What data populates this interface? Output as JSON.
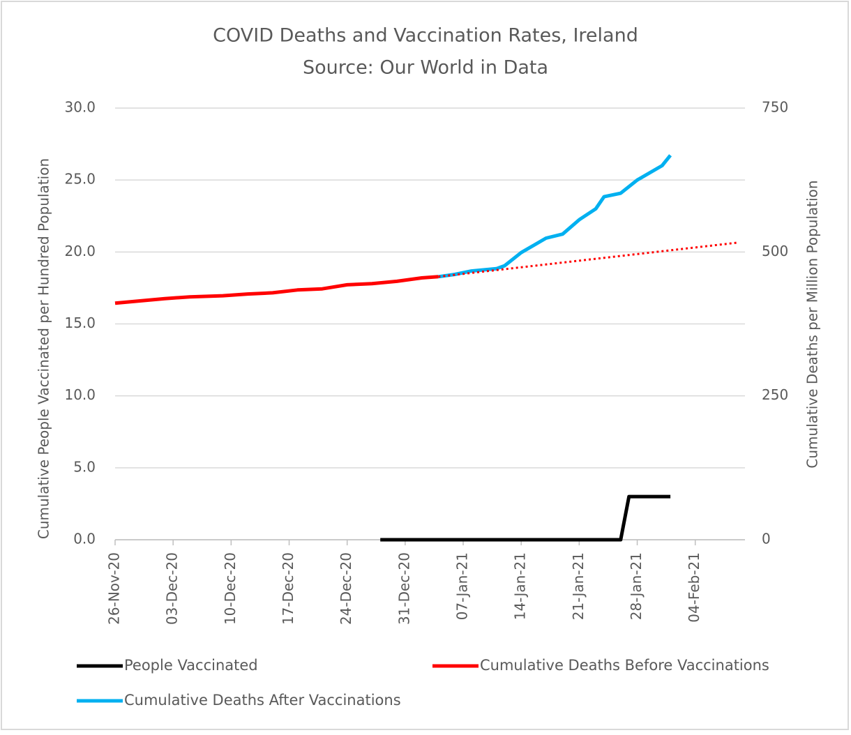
{
  "chart_data": {
    "type": "line",
    "title": "COVID Deaths and Vaccination Rates, Ireland",
    "subtitle": "Source: Our World in Data",
    "ylabel": "Cumulative People Vaccinated per Hundred  Population",
    "y2label": "Cumulative Deaths per Million Population",
    "xlim": [
      "2020-11-26",
      "2021-02-10"
    ],
    "xticks": [
      {
        "value": "2020-11-26",
        "label": "26-Nov-20"
      },
      {
        "value": "2020-12-03",
        "label": "03-Dec-20"
      },
      {
        "value": "2020-12-10",
        "label": "10-Dec-20"
      },
      {
        "value": "2020-12-17",
        "label": "17-Dec-20"
      },
      {
        "value": "2020-12-24",
        "label": "24-Dec-20"
      },
      {
        "value": "2020-12-31",
        "label": "31-Dec-20"
      },
      {
        "value": "2021-01-07",
        "label": "07-Jan-21"
      },
      {
        "value": "2021-01-14",
        "label": "14-Jan-21"
      },
      {
        "value": "2021-01-21",
        "label": "21-Jan-21"
      },
      {
        "value": "2021-01-28",
        "label": "28-Jan-21"
      },
      {
        "value": "2021-02-04",
        "label": "04-Feb-21"
      }
    ],
    "ylim": [
      0,
      30
    ],
    "yticks": [
      {
        "value": 0,
        "label": "0.0"
      },
      {
        "value": 5,
        "label": "5.0"
      },
      {
        "value": 10,
        "label": "10.0"
      },
      {
        "value": 15,
        "label": "15.0"
      },
      {
        "value": 20,
        "label": "20.0"
      },
      {
        "value": 25,
        "label": "25.0"
      },
      {
        "value": 30,
        "label": "30.0"
      }
    ],
    "y2lim": [
      0,
      750
    ],
    "y2ticks": [
      0,
      250,
      500,
      750
    ],
    "grid": true,
    "legend": "bottom",
    "series": [
      {
        "name": "People Vaccinated",
        "color": "#000000",
        "x": [
          "2020-12-28",
          "2021-01-05",
          "2021-01-15",
          "2021-01-26",
          "2021-01-27",
          "2021-02-01"
        ],
        "values": [
          0,
          0,
          0,
          0,
          3.0,
          3.0
        ]
      },
      {
        "name": "Cumulative Deaths Before Vaccinations",
        "color": "#ff0000",
        "axis": "y2",
        "x": [
          "2020-11-26",
          "2020-11-29",
          "2020-12-02",
          "2020-12-05",
          "2020-12-09",
          "2020-12-12",
          "2020-12-15",
          "2020-12-18",
          "2020-12-21",
          "2020-12-24",
          "2020-12-27",
          "2020-12-30",
          "2021-01-02",
          "2021-01-04"
        ],
        "values": [
          411,
          415,
          419,
          422,
          424,
          427,
          429,
          434,
          436,
          443,
          445,
          449,
          455,
          457
        ]
      },
      {
        "name": "Cumulative Deaths After Vaccinations",
        "color": "#00b0f0",
        "axis": "y2",
        "x": [
          "2021-01-04",
          "2021-01-06",
          "2021-01-08",
          "2021-01-11",
          "2021-01-12",
          "2021-01-14",
          "2021-01-17",
          "2021-01-19",
          "2021-01-21",
          "2021-01-23",
          "2021-01-24",
          "2021-01-26",
          "2021-01-28",
          "2021-01-31",
          "2021-02-01"
        ],
        "values": [
          457,
          461,
          467,
          471,
          476,
          499,
          524,
          531,
          556,
          575,
          596,
          602,
          625,
          650,
          668
        ]
      },
      {
        "color": "#ff0000",
        "axis": "y2",
        "dotted": true,
        "x": [
          "2021-01-04",
          "2021-02-09"
        ],
        "values": [
          457,
          516
        ]
      }
    ]
  }
}
